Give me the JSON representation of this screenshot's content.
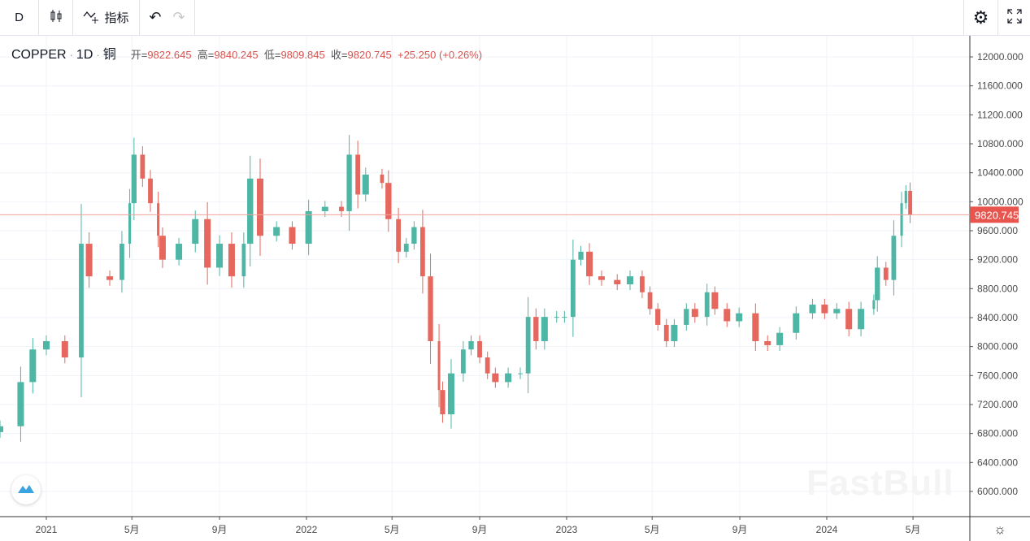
{
  "toolbar": {
    "interval": "D",
    "indicators_label": "指标",
    "icons": [
      "candles-icon",
      "indicators-icon",
      "undo-icon",
      "redo-icon",
      "settings-icon",
      "fullscreen-icon"
    ]
  },
  "legend": {
    "symbol": "COPPER",
    "timeframe": "1D",
    "name": "铜",
    "open_label": "开=",
    "open": "9822.645",
    "high_label": "高=",
    "high": "9840.245",
    "low_label": "低=",
    "low": "9809.845",
    "close_label": "收=",
    "close": "9820.745",
    "change": "+25.250 (+0.26%)"
  },
  "price_label": "9820.745",
  "watermark": "FastBull",
  "colors": {
    "up": "#4db6a4",
    "down": "#e5675e",
    "grid": "#f0f3fa",
    "price_line": "#f3a09a",
    "price_label_bg": "#e8554e"
  },
  "chart_data": {
    "type": "candlestick",
    "approximate": true,
    "ylim": [
      5652,
      12292
    ],
    "y_ticks": [
      "6000.000",
      "6400.000",
      "6800.000",
      "7200.000",
      "7600.000",
      "8000.000",
      "8400.000",
      "8800.000",
      "9200.000",
      "9600.000",
      "10000.000",
      "10400.000",
      "10800.000",
      "11200.000",
      "11600.000",
      "12000.000"
    ],
    "x_ticks": [
      {
        "date": "2021-01-01",
        "label": "2021"
      },
      {
        "date": "2021-05-01",
        "label": "5月"
      },
      {
        "date": "2021-09-01",
        "label": "9月"
      },
      {
        "date": "2022-01-01",
        "label": "2022"
      },
      {
        "date": "2022-05-01",
        "label": "5月"
      },
      {
        "date": "2022-09-01",
        "label": "9月"
      },
      {
        "date": "2023-01-01",
        "label": "2023"
      },
      {
        "date": "2023-05-01",
        "label": "5月"
      },
      {
        "date": "2023-09-01",
        "label": "9月"
      },
      {
        "date": "2024-01-01",
        "label": "2024"
      },
      {
        "date": "2024-05-01",
        "label": "5月"
      }
    ],
    "last_price": 9820.745,
    "dates": [
      "2020-10-28",
      "2020-11-26",
      "2020-12-13",
      "2021-01-01",
      "2021-01-27",
      "2021-02-19",
      "2021-03-02",
      "2021-03-31",
      "2021-04-17",
      "2021-04-28",
      "2021-05-04",
      "2021-05-16",
      "2021-05-27",
      "2021-06-07",
      "2021-06-13",
      "2021-07-06",
      "2021-07-29",
      "2021-08-15",
      "2021-09-01",
      "2021-09-18",
      "2021-10-05",
      "2021-10-14",
      "2021-10-28",
      "2021-11-20",
      "2021-12-12",
      "2022-01-04",
      "2022-01-27",
      "2022-02-19",
      "2022-03-02",
      "2022-03-14",
      "2022-03-25",
      "2022-04-17",
      "2022-04-26",
      "2022-05-10",
      "2022-05-21",
      "2022-06-01",
      "2022-06-13",
      "2022-06-24",
      "2022-07-06",
      "2022-07-11",
      "2022-07-23",
      "2022-08-09",
      "2022-08-20",
      "2022-09-01",
      "2022-09-12",
      "2022-09-23",
      "2022-10-11",
      "2022-10-28",
      "2022-11-08",
      "2022-11-19",
      "2022-12-01",
      "2022-12-18",
      "2022-12-29",
      "2023-01-10",
      "2023-01-21",
      "2023-02-02",
      "2023-02-19",
      "2023-03-13",
      "2023-03-31",
      "2023-04-17",
      "2023-04-28",
      "2023-05-09",
      "2023-05-21",
      "2023-06-01",
      "2023-06-18",
      "2023-06-30",
      "2023-07-17",
      "2023-07-28",
      "2023-08-14",
      "2023-08-31",
      "2023-09-23",
      "2023-10-10",
      "2023-10-27",
      "2023-11-19",
      "2023-12-12",
      "2023-12-29",
      "2024-01-15",
      "2024-02-01",
      "2024-02-18",
      "2024-03-07",
      "2024-03-12",
      "2024-03-24",
      "2024-04-04",
      "2024-04-15",
      "2024-04-21",
      "2024-04-27"
    ],
    "close": [
      6900,
      7510,
      7960,
      8075,
      7850,
      9420,
      8970,
      8920,
      9420,
      9980,
      10650,
      10320,
      9980,
      9530,
      9200,
      9420,
      9760,
      9090,
      9420,
      8970,
      9420,
      10320,
      9530,
      9650,
      9420,
      9870,
      9930,
      9870,
      10650,
      10100,
      10375,
      10260,
      9760,
      9310,
      9420,
      9650,
      8970,
      8075,
      7400,
      7065,
      7630,
      7960,
      8075,
      7850,
      7630,
      7510,
      7630,
      7630,
      8410,
      8075,
      8410,
      8410,
      8410,
      9200,
      9310,
      8970,
      8920,
      8860,
      8970,
      8750,
      8520,
      8300,
      8075,
      8300,
      8520,
      8410,
      8750,
      8520,
      8350,
      8460,
      8075,
      8020,
      8190,
      8460,
      8580,
      8460,
      8520,
      8240,
      8520,
      8640,
      9090,
      8920,
      9530,
      9980,
      10150,
      9820
    ]
  }
}
